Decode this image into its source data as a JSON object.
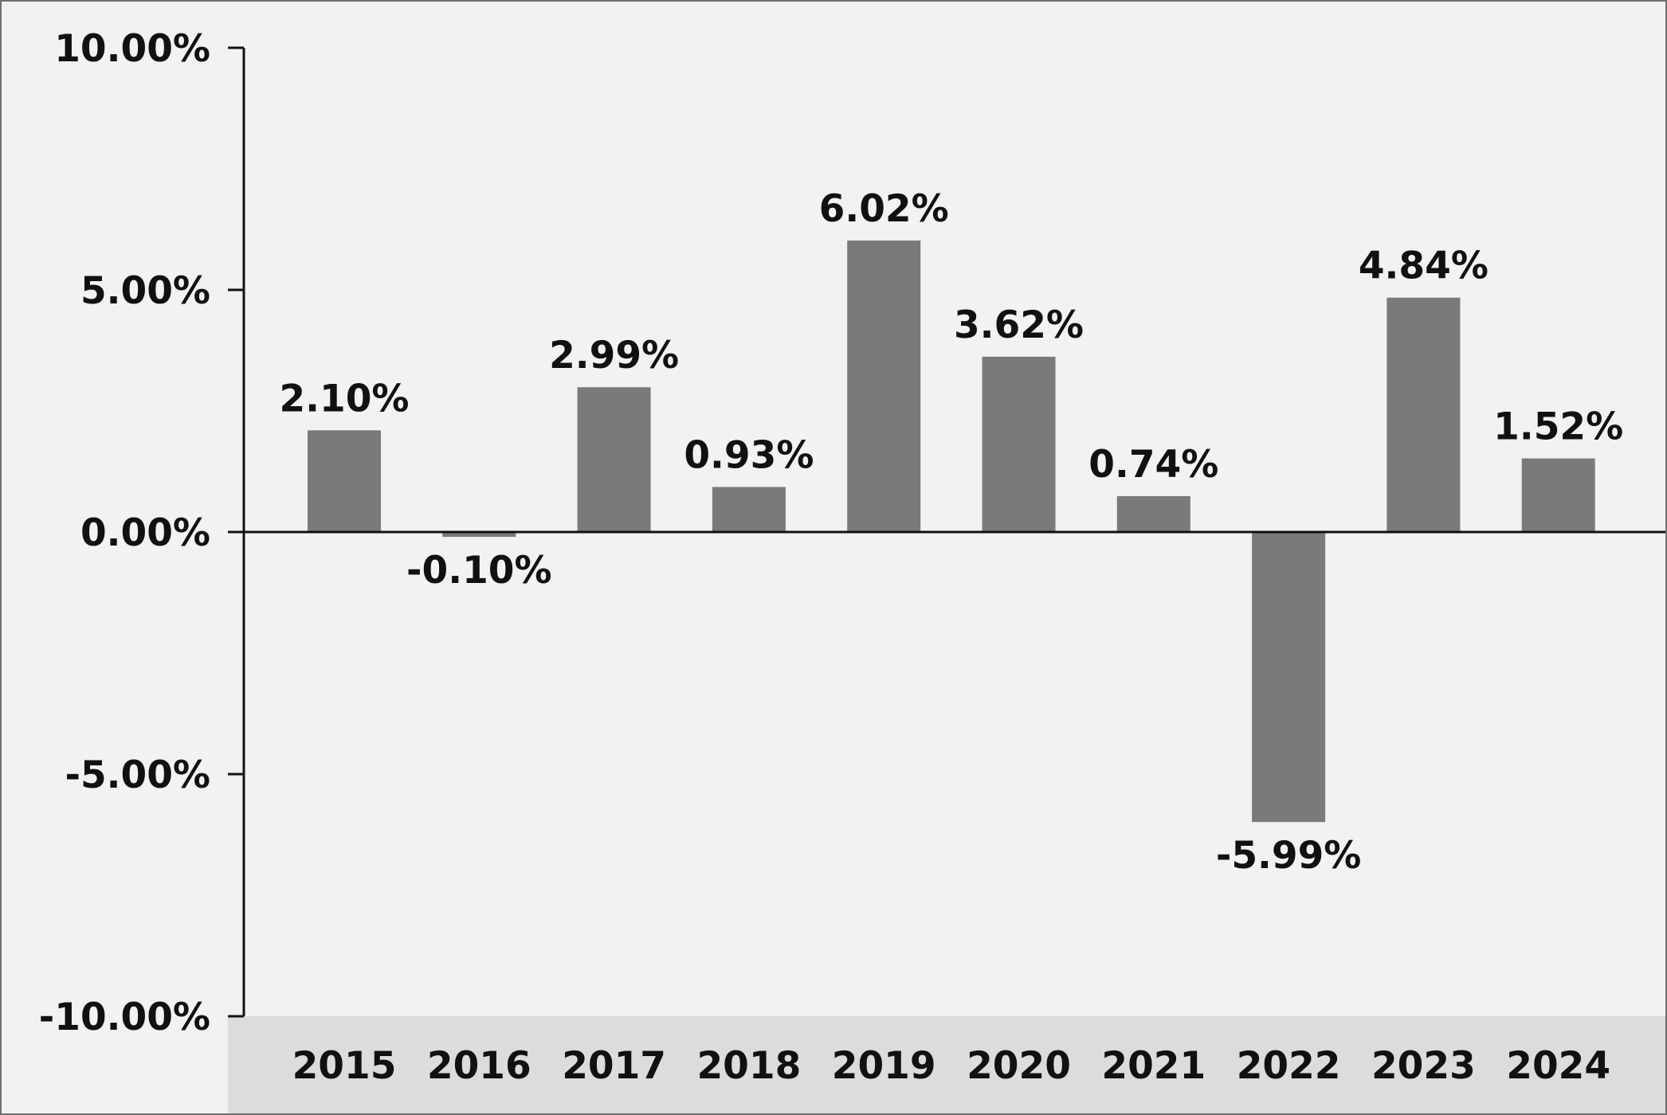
{
  "chart_data": {
    "type": "bar",
    "title": "",
    "xlabel": "",
    "ylabel": "",
    "categories": [
      "2015",
      "2016",
      "2017",
      "2018",
      "2019",
      "2020",
      "2021",
      "2022",
      "2023",
      "2024"
    ],
    "values": [
      2.1,
      -0.1,
      2.99,
      0.93,
      6.02,
      3.62,
      0.74,
      -5.99,
      4.84,
      1.52
    ],
    "data_labels": [
      "2.10%",
      "-0.10%",
      "2.99%",
      "0.93%",
      "6.02%",
      "3.62%",
      "0.74%",
      "-5.99%",
      "4.84%",
      "1.52%"
    ],
    "ylim": [
      -10,
      10
    ],
    "yticks": [
      10,
      5,
      0,
      -5,
      -10
    ],
    "ytick_labels": [
      "10.00%",
      "5.00%",
      "0.00%",
      "-5.00%",
      "-10.00%"
    ],
    "grid": false,
    "legend": "none",
    "colors": {
      "bar": "#7a7a7a",
      "background": "#f1f2f1",
      "category_band": "#dcdcdd",
      "axis": "#111111",
      "frame": "#6f6f6f"
    }
  }
}
